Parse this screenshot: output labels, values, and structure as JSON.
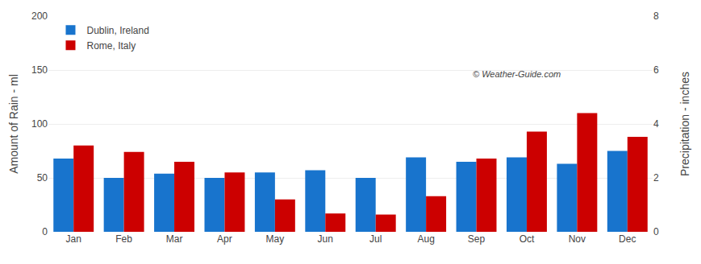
{
  "chart_data": {
    "type": "bar",
    "categories": [
      "Jan",
      "Feb",
      "Mar",
      "Apr",
      "May",
      "Jun",
      "Jul",
      "Aug",
      "Sep",
      "Oct",
      "Nov",
      "Dec"
    ],
    "series": [
      {
        "name": "Dublin, Ireland",
        "color": "#1874CD",
        "values": [
          68,
          50,
          54,
          50,
          55,
          57,
          50,
          69,
          65,
          69,
          63,
          75
        ]
      },
      {
        "name": "Rome, Italy",
        "color": "#CC0000",
        "values": [
          80,
          74,
          65,
          55,
          30,
          17,
          16,
          33,
          68,
          93,
          110,
          88
        ]
      }
    ],
    "ylabel": "Amount of Rain - ml",
    "y2label": "Precipitation - inches",
    "ylim": [
      0,
      200
    ],
    "yticks": [
      0,
      50,
      100,
      150,
      200
    ],
    "y2lim": [
      0,
      8
    ],
    "y2ticks": [
      0,
      2,
      4,
      6,
      8
    ],
    "annotations": [
      "© Weather-Guide.com"
    ],
    "legend": "upper left",
    "grid": true
  }
}
